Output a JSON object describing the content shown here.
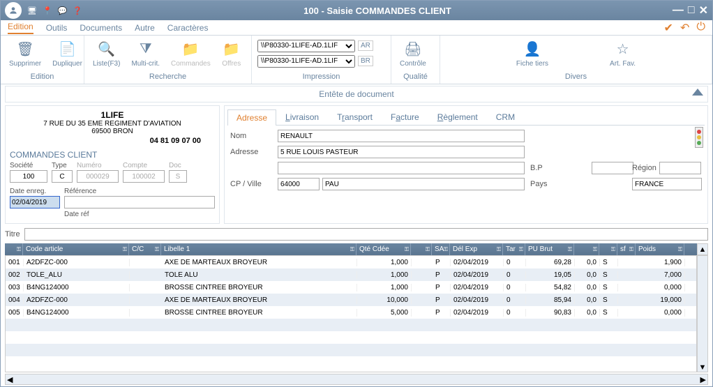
{
  "titlebar": {
    "title": "100 - Saisie COMMANDES CLIENT"
  },
  "menu": {
    "edition": "Edition",
    "outils": "Outils",
    "documents": "Documents",
    "autre": "Autre",
    "caracteres": "Caractères"
  },
  "toolbar": {
    "supprimer": "Supprimer",
    "dupliquer": "Dupliquer",
    "group_edition": "Edition",
    "liste": "Liste(F3)",
    "multicrit": "Multi-crit.",
    "commandes": "Commandes",
    "offres": "Offres",
    "group_recherche": "Recherche",
    "impr_opt": "\\\\P80330-1LIFE-AD.1LIF",
    "ar": "AR",
    "br": "BR",
    "group_impression": "Impression",
    "controle": "Contrôle",
    "group_qualite": "Qualité",
    "fichetiers": "Fiche tiers",
    "artfav": "Art. Fav.",
    "group_divers": "Divers"
  },
  "section": {
    "entete": "Entête de document"
  },
  "company": {
    "name": "1LIFE",
    "addr1": "7 RUE DU 35 EME REGIMENT D'AVIATION",
    "addr2": "69500 BRON",
    "phone": "04 81 09 07 00"
  },
  "doc": {
    "type": "COMMANDES CLIENT",
    "labels": {
      "societe": "Société",
      "type": "Type",
      "numero": "Numéro",
      "compte": "Compte",
      "doc": "Doc",
      "date_enreg": "Date enreg.",
      "reference": "Référence",
      "date_ref": "Date réf"
    },
    "values": {
      "societe": "100",
      "type": "C",
      "numero": "000029",
      "compte": "100002",
      "doc": "S",
      "date_enreg": "02/04/2019",
      "reference": "",
      "date_ref": ""
    }
  },
  "tabs": {
    "adresse": "Adresse",
    "livraison": "Livraison",
    "transport": "Transport",
    "facture": "Facture",
    "reglement": "Règlement",
    "crm": "CRM"
  },
  "address": {
    "labels": {
      "nom": "Nom",
      "adresse": "Adresse",
      "cpville": "CP / Ville",
      "bp": "B.P",
      "region": "Région",
      "pays": "Pays"
    },
    "values": {
      "nom": "RENAULT",
      "adresse1": "5 RUE LOUIS PASTEUR",
      "adresse2": "",
      "cp": "64000",
      "ville": "PAU",
      "bp": "",
      "region": "",
      "pays": "FRANCE"
    }
  },
  "traffic": {
    "red": "#d44",
    "yellow": "#e8c040",
    "green": "#5a5"
  },
  "titre": {
    "label": "Titre",
    "value": ""
  },
  "grid": {
    "headers": [
      "",
      "Code article",
      "C/C",
      "Libelle 1",
      "Qté Cdée",
      "",
      "SA",
      "Dél Exp",
      "Tar",
      "PU Brut",
      "",
      "",
      "sf",
      "Poids"
    ],
    "rows": [
      {
        "n": "001",
        "code": "A2DFZC-000",
        "cc": "",
        "lib": "AXE DE MARTEAUX BROYEUR",
        "qte": "1,000",
        "sa": "",
        "p": "P",
        "del": "02/04/2019",
        "tar": "0",
        "pu": "69,28",
        "x": "0,0",
        "s": "S",
        "sf": "",
        "poids": "1,900"
      },
      {
        "n": "002",
        "code": "TOLE_ALU",
        "cc": "",
        "lib": "TOLE ALU",
        "qte": "1,000",
        "sa": "",
        "p": "P",
        "del": "02/04/2019",
        "tar": "0",
        "pu": "19,05",
        "x": "0,0",
        "s": "S",
        "sf": "",
        "poids": "7,000"
      },
      {
        "n": "003",
        "code": "B4NG124000",
        "cc": "",
        "lib": "BROSSE CINTREE BROYEUR",
        "qte": "1,000",
        "sa": "",
        "p": "P",
        "del": "02/04/2019",
        "tar": "0",
        "pu": "54,82",
        "x": "0,0",
        "s": "S",
        "sf": "",
        "poids": "0,000"
      },
      {
        "n": "004",
        "code": "A2DFZC-000",
        "cc": "",
        "lib": "AXE DE MARTEAUX BROYEUR",
        "qte": "10,000",
        "sa": "",
        "p": "P",
        "del": "02/04/2019",
        "tar": "0",
        "pu": "85,94",
        "x": "0,0",
        "s": "S",
        "sf": "",
        "poids": "19,000"
      },
      {
        "n": "005",
        "code": "B4NG124000",
        "cc": "",
        "lib": "BROSSE CINTREE BROYEUR",
        "qte": "5,000",
        "sa": "",
        "p": "P",
        "del": "02/04/2019",
        "tar": "0",
        "pu": "90,83",
        "x": "0,0",
        "s": "S",
        "sf": "",
        "poids": "0,000"
      }
    ]
  },
  "colors": {
    "accent": "#e08030",
    "header": "#6a85a0",
    "check": "#e08030",
    "undo": "#e08030",
    "power": "#e08030"
  }
}
